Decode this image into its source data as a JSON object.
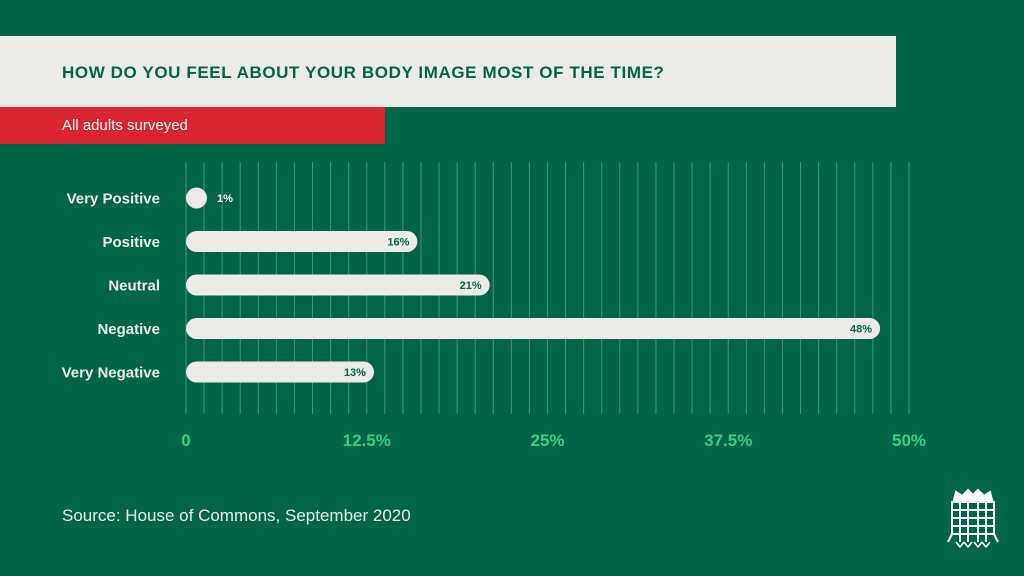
{
  "header": {
    "title": "HOW DO YOU FEEL ABOUT YOUR BODY IMAGE MOST OF THE TIME?",
    "subtitle": "All adults surveyed"
  },
  "footer": {
    "source": "Source: House of Commons, September 2020",
    "logo": "portcullis-icon"
  },
  "colors": {
    "background": "#006548",
    "bar": "#ecebe8",
    "accent_band": "#d9262e",
    "tick_label": "#35d07f",
    "value_label": "#006548"
  },
  "chart_data": {
    "type": "bar",
    "orientation": "horizontal",
    "title": "HOW DO YOU FEEL ABOUT YOUR BODY IMAGE MOST OF THE TIME?",
    "subtitle": "All adults surveyed",
    "categories": [
      "Very Positive",
      "Positive",
      "Neutral",
      "Negative",
      "Very Negative"
    ],
    "values": [
      1,
      16,
      21,
      48,
      13
    ],
    "value_labels": [
      "1%",
      "16%",
      "21%",
      "48%",
      "13%"
    ],
    "xlim": [
      0,
      50
    ],
    "xticks": [
      0,
      12.5,
      25,
      37.5,
      50
    ],
    "xtick_labels": [
      "0",
      "12.5%",
      "25%",
      "37.5%",
      "50%"
    ],
    "grid": true,
    "grid_step": 1.25,
    "legend": "none"
  }
}
